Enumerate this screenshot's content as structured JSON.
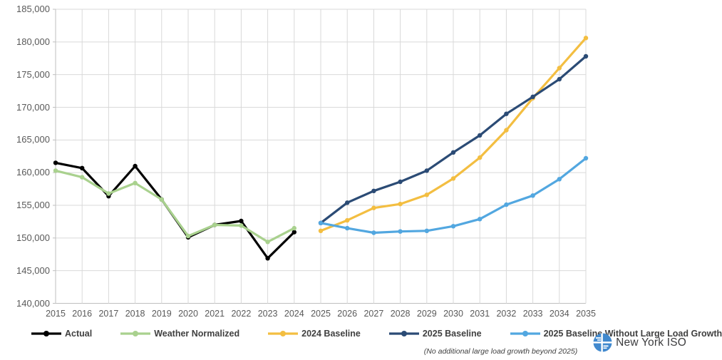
{
  "chart_data": {
    "type": "line",
    "title": "",
    "xlabel": "",
    "ylabel": "",
    "x": [
      2015,
      2016,
      2017,
      2018,
      2019,
      2020,
      2021,
      2022,
      2023,
      2024,
      2025,
      2026,
      2027,
      2028,
      2029,
      2030,
      2031,
      2032,
      2033,
      2034,
      2035
    ],
    "ylim": [
      140000,
      185000
    ],
    "ytick_step": 5000,
    "grid": true,
    "legend_position": "bottom",
    "series": [
      {
        "name": "Actual",
        "color": "#000000",
        "values": [
          161500,
          160700,
          156400,
          161000,
          155900,
          150100,
          152000,
          152600,
          146900,
          150900,
          null,
          null,
          null,
          null,
          null,
          null,
          null,
          null,
          null,
          null,
          null
        ]
      },
      {
        "name": "Weather Normalized",
        "color": "#A9D18E",
        "values": [
          160300,
          159300,
          156800,
          158400,
          155900,
          150300,
          152000,
          151900,
          149400,
          151500,
          null,
          null,
          null,
          null,
          null,
          null,
          null,
          null,
          null,
          null,
          null
        ]
      },
      {
        "name": "2024 Baseline",
        "color": "#F3BE41",
        "values": [
          null,
          null,
          null,
          null,
          null,
          null,
          null,
          null,
          null,
          null,
          151100,
          152700,
          154600,
          155200,
          156600,
          159100,
          162300,
          166500,
          171400,
          176000,
          180600
        ]
      },
      {
        "name": "2025 Baseline",
        "color": "#2B4B75",
        "values": [
          null,
          null,
          null,
          null,
          null,
          null,
          null,
          null,
          null,
          null,
          152300,
          155400,
          157200,
          158600,
          160300,
          163100,
          165700,
          169000,
          171600,
          174300,
          177800
        ]
      },
      {
        "name": "2025 Baseline Without Large Load Growth",
        "color": "#52A7E0",
        "values": [
          null,
          null,
          null,
          null,
          null,
          null,
          null,
          null,
          null,
          null,
          152300,
          151500,
          150800,
          151000,
          151100,
          151800,
          152900,
          155100,
          156500,
          159000,
          162200
        ]
      }
    ],
    "note": "(No additional large load growth beyond 2025)"
  },
  "branding": {
    "logo_text": "New York ISO"
  },
  "colors": {
    "grid": "#D9D9D9",
    "axis": "#BFBFBF",
    "tick_text": "#595959",
    "legend_text": "#404040",
    "logo_blue": "#4189CE"
  }
}
